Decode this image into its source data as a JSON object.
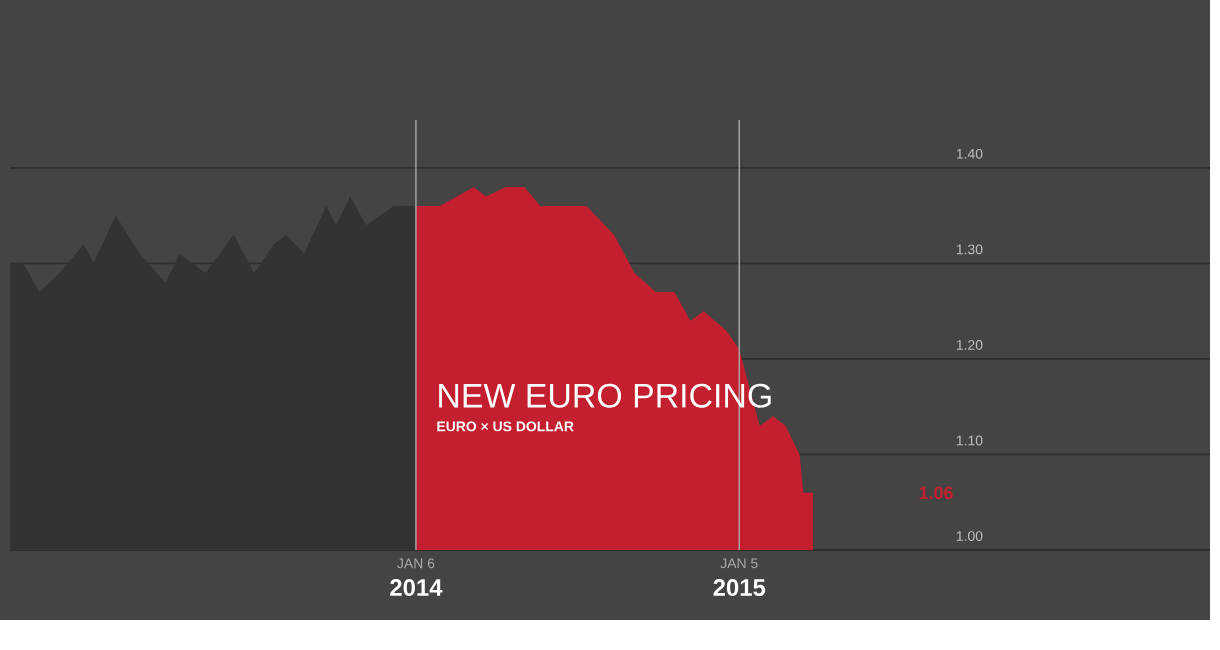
{
  "chart_data": {
    "type": "area",
    "title": "NEW EURO PRICING",
    "subtitle": "EURO × US DOLLAR",
    "series": [
      {
        "color": "#333333",
        "x": [
          "2012-10-06",
          "2012-10-21",
          "2012-11-08",
          "2012-12-01",
          "2012-12-28",
          "2013-01-08",
          "2013-02-02",
          "2013-03-01",
          "2013-03-30",
          "2013-04-15",
          "2013-05-14",
          "2013-06-15",
          "2013-07-08",
          "2013-07-30",
          "2013-08-13",
          "2013-09-02",
          "2013-09-27",
          "2013-10-08",
          "2013-10-24",
          "2013-11-11",
          "2013-12-12",
          "2014-01-06"
        ],
        "values": [
          1.3,
          1.3,
          1.27,
          1.29,
          1.32,
          1.3,
          1.35,
          1.31,
          1.28,
          1.31,
          1.29,
          1.33,
          1.29,
          1.32,
          1.33,
          1.31,
          1.36,
          1.34,
          1.37,
          1.34,
          1.36,
          1.36
        ]
      },
      {
        "color": "#c41f2e",
        "x": [
          "2014-01-06",
          "2014-02-02",
          "2014-03-12",
          "2014-03-26",
          "2014-04-17",
          "2014-05-08",
          "2014-05-26",
          "2014-06-17",
          "2014-07-17",
          "2014-08-17",
          "2014-09-09",
          "2014-10-03",
          "2014-10-24",
          "2014-11-11",
          "2014-11-26",
          "2014-12-21",
          "2015-01-05",
          "2015-01-28",
          "2015-02-12",
          "2015-02-26",
          "2015-03-14",
          "2015-03-18",
          "2015-03-29"
        ],
        "values": [
          1.36,
          1.36,
          1.38,
          1.37,
          1.38,
          1.38,
          1.36,
          1.36,
          1.36,
          1.33,
          1.29,
          1.27,
          1.27,
          1.24,
          1.25,
          1.23,
          1.21,
          1.13,
          1.14,
          1.13,
          1.1,
          1.06,
          1.06
        ]
      }
    ],
    "xlim": [
      "2012-10-06",
      "2016-06-18"
    ],
    "xticks": [
      {
        "value": "2014-01-06",
        "label": "2014"
      },
      {
        "value": "2015-01-05",
        "label": "2015"
      }
    ],
    "ylim": [
      1.0,
      1.45
    ],
    "yticks": [
      {
        "value": 1.0,
        "label": "1.00"
      },
      {
        "value": 1.1,
        "label": "1.10"
      },
      {
        "value": 1.2,
        "label": "1.20"
      },
      {
        "value": 1.3,
        "label": "1.30"
      },
      {
        "value": 1.4,
        "label": "1.40"
      }
    ],
    "grid": "y",
    "ref_lines": [
      {
        "axis": "x",
        "value": "2014-01-06",
        "label": "JAN 6",
        "color": "#aaaaaa"
      },
      {
        "axis": "x",
        "value": "2015-01-05",
        "label": "JAN 5",
        "color": "#aaaaaa"
      }
    ],
    "annotations": [
      "1.06"
    ]
  }
}
